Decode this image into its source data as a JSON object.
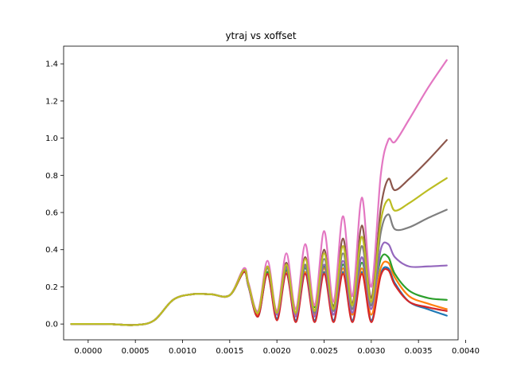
{
  "chart_data": {
    "type": "line",
    "title": "ytraj vs xoffset",
    "xlabel": "",
    "ylabel": "",
    "xlim": [
      -0.00026,
      0.00392
    ],
    "ylim": [
      -0.085,
      1.495
    ],
    "grid": false,
    "legend": "none",
    "xticks": [
      {
        "value": 0.0,
        "label": "0.0000"
      },
      {
        "value": 0.0005,
        "label": "0.0005"
      },
      {
        "value": 0.001,
        "label": "0.0010"
      },
      {
        "value": 0.0015,
        "label": "0.0015"
      },
      {
        "value": 0.002,
        "label": "0.0020"
      },
      {
        "value": 0.0025,
        "label": "0.0025"
      },
      {
        "value": 0.003,
        "label": "0.0030"
      },
      {
        "value": 0.0035,
        "label": "0.0035"
      },
      {
        "value": 0.004,
        "label": "0.0040"
      }
    ],
    "yticks": [
      {
        "value": 0.0,
        "label": "0.0"
      },
      {
        "value": 0.2,
        "label": "0.2"
      },
      {
        "value": 0.4,
        "label": "0.4"
      },
      {
        "value": 0.6,
        "label": "0.6"
      },
      {
        "value": 0.8,
        "label": "0.8"
      },
      {
        "value": 1.0,
        "label": "1.0"
      },
      {
        "value": 1.2,
        "label": "1.2"
      },
      {
        "value": 1.4,
        "label": "1.4"
      }
    ],
    "series": [
      {
        "color": "#1f77b4",
        "x": [
          -0.00018,
          0.0002,
          0.0005,
          0.0007,
          0.0009,
          0.0011,
          0.0013,
          0.0015,
          0.00165,
          0.0017,
          0.0018,
          0.0019,
          0.002,
          0.0021,
          0.0022,
          0.0023,
          0.0024,
          0.0025,
          0.0026,
          0.0027,
          0.0028,
          0.0029,
          0.003,
          0.0031,
          0.00318,
          0.00325,
          0.0034,
          0.0036,
          0.0038
        ],
        "y": [
          0.0,
          0.0,
          -0.005,
          0.02,
          0.13,
          0.16,
          0.16,
          0.155,
          0.28,
          0.2,
          0.04,
          0.27,
          0.03,
          0.28,
          0.02,
          0.28,
          0.02,
          0.28,
          0.02,
          0.28,
          0.02,
          0.28,
          0.02,
          0.27,
          0.3,
          0.22,
          0.12,
          0.08,
          0.045
        ]
      },
      {
        "color": "#ff7f0e",
        "x": [
          -0.00018,
          0.0002,
          0.0005,
          0.0007,
          0.0009,
          0.0011,
          0.0013,
          0.0015,
          0.00165,
          0.0017,
          0.0018,
          0.0019,
          0.002,
          0.0021,
          0.0022,
          0.0023,
          0.0024,
          0.0025,
          0.0026,
          0.0027,
          0.0028,
          0.0029,
          0.003,
          0.0031,
          0.00318,
          0.00325,
          0.0034,
          0.0036,
          0.0038
        ],
        "y": [
          0.0,
          0.0,
          -0.005,
          0.02,
          0.13,
          0.16,
          0.16,
          0.155,
          0.28,
          0.2,
          0.05,
          0.28,
          0.05,
          0.28,
          0.05,
          0.28,
          0.05,
          0.3,
          0.05,
          0.3,
          0.05,
          0.3,
          0.05,
          0.3,
          0.33,
          0.25,
          0.15,
          0.11,
          0.08
        ]
      },
      {
        "color": "#2ca02c",
        "x": [
          -0.00018,
          0.0002,
          0.0005,
          0.0007,
          0.0009,
          0.0011,
          0.0013,
          0.0015,
          0.00165,
          0.0017,
          0.0018,
          0.0019,
          0.002,
          0.0021,
          0.0022,
          0.0023,
          0.0024,
          0.0025,
          0.0026,
          0.0027,
          0.0028,
          0.0029,
          0.003,
          0.0031,
          0.00318,
          0.00325,
          0.0034,
          0.0036,
          0.0038
        ],
        "y": [
          0.0,
          0.0,
          -0.005,
          0.02,
          0.13,
          0.16,
          0.16,
          0.155,
          0.28,
          0.2,
          0.06,
          0.28,
          0.07,
          0.29,
          0.08,
          0.3,
          0.09,
          0.31,
          0.1,
          0.32,
          0.11,
          0.33,
          0.12,
          0.35,
          0.36,
          0.27,
          0.18,
          0.14,
          0.13
        ]
      },
      {
        "color": "#d62728",
        "x": [
          -0.00018,
          0.0002,
          0.0005,
          0.0007,
          0.0009,
          0.0011,
          0.0013,
          0.0015,
          0.00165,
          0.0017,
          0.0018,
          0.0019,
          0.002,
          0.0021,
          0.0022,
          0.0023,
          0.0024,
          0.0025,
          0.0026,
          0.0027,
          0.0028,
          0.0029,
          0.003,
          0.0031,
          0.00318,
          0.00325,
          0.0034,
          0.0036,
          0.0038
        ],
        "y": [
          0.0,
          0.0,
          -0.005,
          0.02,
          0.13,
          0.16,
          0.16,
          0.155,
          0.28,
          0.2,
          0.04,
          0.27,
          0.02,
          0.27,
          0.01,
          0.27,
          0.01,
          0.27,
          0.01,
          0.27,
          0.01,
          0.27,
          0.01,
          0.26,
          0.29,
          0.21,
          0.12,
          0.09,
          0.07
        ]
      },
      {
        "color": "#9467bd",
        "x": [
          -0.00018,
          0.0002,
          0.0005,
          0.0007,
          0.0009,
          0.0011,
          0.0013,
          0.0015,
          0.00165,
          0.0017,
          0.0018,
          0.0019,
          0.002,
          0.0021,
          0.0022,
          0.0023,
          0.0024,
          0.0025,
          0.0026,
          0.0027,
          0.0028,
          0.0029,
          0.003,
          0.0031,
          0.00318,
          0.00325,
          0.0034,
          0.0036,
          0.0038
        ],
        "y": [
          0.0,
          0.0,
          -0.005,
          0.02,
          0.13,
          0.16,
          0.16,
          0.155,
          0.29,
          0.2,
          0.06,
          0.3,
          0.05,
          0.3,
          0.04,
          0.31,
          0.04,
          0.32,
          0.05,
          0.34,
          0.06,
          0.36,
          0.08,
          0.4,
          0.43,
          0.36,
          0.31,
          0.31,
          0.315
        ]
      },
      {
        "color": "#8c564b",
        "x": [
          -0.00018,
          0.0002,
          0.0005,
          0.0007,
          0.0009,
          0.0011,
          0.0013,
          0.0015,
          0.00165,
          0.0017,
          0.0018,
          0.0019,
          0.002,
          0.0021,
          0.0022,
          0.0023,
          0.0024,
          0.0025,
          0.0026,
          0.0027,
          0.0028,
          0.0029,
          0.003,
          0.0031,
          0.00318,
          0.00325,
          0.0034,
          0.0036,
          0.0038
        ],
        "y": [
          0.0,
          0.0,
          -0.005,
          0.02,
          0.13,
          0.16,
          0.16,
          0.155,
          0.29,
          0.21,
          0.06,
          0.31,
          0.06,
          0.33,
          0.06,
          0.36,
          0.07,
          0.4,
          0.09,
          0.46,
          0.11,
          0.53,
          0.14,
          0.62,
          0.78,
          0.72,
          0.78,
          0.88,
          0.99
        ]
      },
      {
        "color": "#e377c2",
        "x": [
          -0.00018,
          0.0002,
          0.0005,
          0.0007,
          0.0009,
          0.0011,
          0.0013,
          0.0015,
          0.00165,
          0.0017,
          0.0018,
          0.0019,
          0.002,
          0.0021,
          0.0022,
          0.0023,
          0.0024,
          0.0025,
          0.0026,
          0.0027,
          0.0028,
          0.0029,
          0.003,
          0.0031,
          0.00318,
          0.00325,
          0.0034,
          0.0036,
          0.0038
        ],
        "y": [
          0.0,
          0.0,
          -0.005,
          0.02,
          0.13,
          0.16,
          0.16,
          0.155,
          0.3,
          0.22,
          0.07,
          0.34,
          0.07,
          0.38,
          0.08,
          0.43,
          0.1,
          0.5,
          0.12,
          0.58,
          0.15,
          0.68,
          0.2,
          0.8,
          0.99,
          0.98,
          1.1,
          1.27,
          1.42
        ]
      },
      {
        "color": "#7f7f7f",
        "x": [
          -0.00018,
          0.0002,
          0.0005,
          0.0007,
          0.0009,
          0.0011,
          0.0013,
          0.0015,
          0.00165,
          0.0017,
          0.0018,
          0.0019,
          0.002,
          0.0021,
          0.0022,
          0.0023,
          0.0024,
          0.0025,
          0.0026,
          0.0027,
          0.0028,
          0.0029,
          0.003,
          0.0031,
          0.00318,
          0.00325,
          0.0034,
          0.0036,
          0.0038
        ],
        "y": [
          0.0,
          0.0,
          -0.005,
          0.02,
          0.13,
          0.16,
          0.16,
          0.155,
          0.29,
          0.21,
          0.06,
          0.3,
          0.06,
          0.31,
          0.06,
          0.32,
          0.06,
          0.35,
          0.07,
          0.38,
          0.08,
          0.42,
          0.1,
          0.49,
          0.59,
          0.51,
          0.52,
          0.57,
          0.615
        ]
      },
      {
        "color": "#bcbd22",
        "x": [
          -0.00018,
          0.0002,
          0.0005,
          0.0007,
          0.0009,
          0.0011,
          0.0013,
          0.0015,
          0.00165,
          0.0017,
          0.0018,
          0.0019,
          0.002,
          0.0021,
          0.0022,
          0.0023,
          0.0024,
          0.0025,
          0.0026,
          0.0027,
          0.0028,
          0.0029,
          0.003,
          0.0031,
          0.00318,
          0.00325,
          0.0034,
          0.0036,
          0.0038
        ],
        "y": [
          0.0,
          0.0,
          -0.005,
          0.02,
          0.13,
          0.16,
          0.16,
          0.155,
          0.29,
          0.21,
          0.06,
          0.31,
          0.06,
          0.32,
          0.06,
          0.35,
          0.07,
          0.38,
          0.08,
          0.42,
          0.1,
          0.47,
          0.12,
          0.55,
          0.67,
          0.61,
          0.65,
          0.72,
          0.785
        ]
      }
    ]
  }
}
